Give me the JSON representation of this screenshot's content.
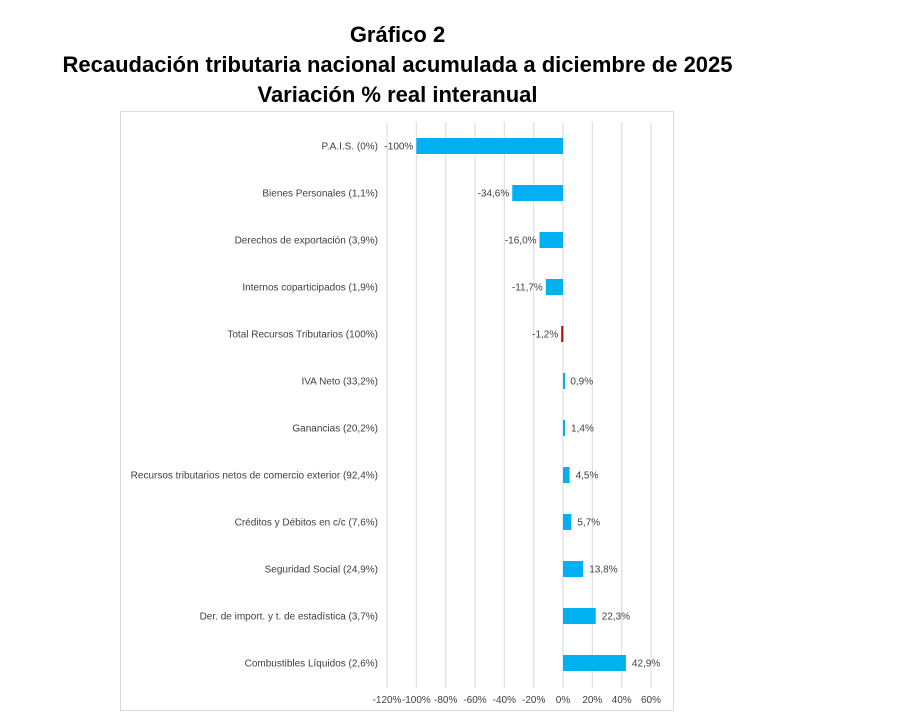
{
  "title_lines": [
    "Gráfico 2",
    "Recaudación tributaria nacional acumulada a diciembre de 2025",
    "Variación % real interanual"
  ],
  "chart_data": {
    "type": "bar",
    "orientation": "horizontal",
    "categories": [
      "P.A.I.S. (0%)",
      "Bienes Personales (1,1%)",
      "Derechos de exportación (3,9%)",
      "Internos coparticipados (1,9%)",
      "Total Recursos Tributarios (100%)",
      "IVA Neto (33,2%)",
      "Ganancias (20,2%)",
      "Recursos tributarios netos de comercio exterior (92,4%)",
      "Créditos y Débitos en c/c (7,6%)",
      "Seguridad Social (24,9%)",
      "Der. de import. y t. de estadística (3,7%)",
      "Combustibles Líquidos (2,6%)"
    ],
    "values": [
      -100,
      -34.6,
      -16.0,
      -11.7,
      -1.2,
      0.9,
      1.4,
      4.5,
      5.7,
      13.8,
      22.3,
      42.9
    ],
    "data_labels": [
      "-100%",
      "-34,6%",
      "-16,0%",
      "-11,7%",
      "-1,2%",
      "0,9%",
      "1,4%",
      "4,5%",
      "5,7%",
      "13,8%",
      "22,3%",
      "42,9%"
    ],
    "xlim": [
      -120,
      60
    ],
    "xticks": [
      -120,
      -100,
      -80,
      -60,
      -40,
      -20,
      0,
      20,
      40,
      60
    ],
    "xtick_labels": [
      "-120%",
      "-100%",
      "-80%",
      "-60%",
      "-40%",
      "-20%",
      "0%",
      "20%",
      "40%",
      "60%"
    ],
    "grid": true,
    "colors": {
      "bar": "#00b0f0",
      "highlight": "#c00000",
      "grid": "#d9d9d9",
      "text": "#404040"
    },
    "highlight_index": 4
  }
}
